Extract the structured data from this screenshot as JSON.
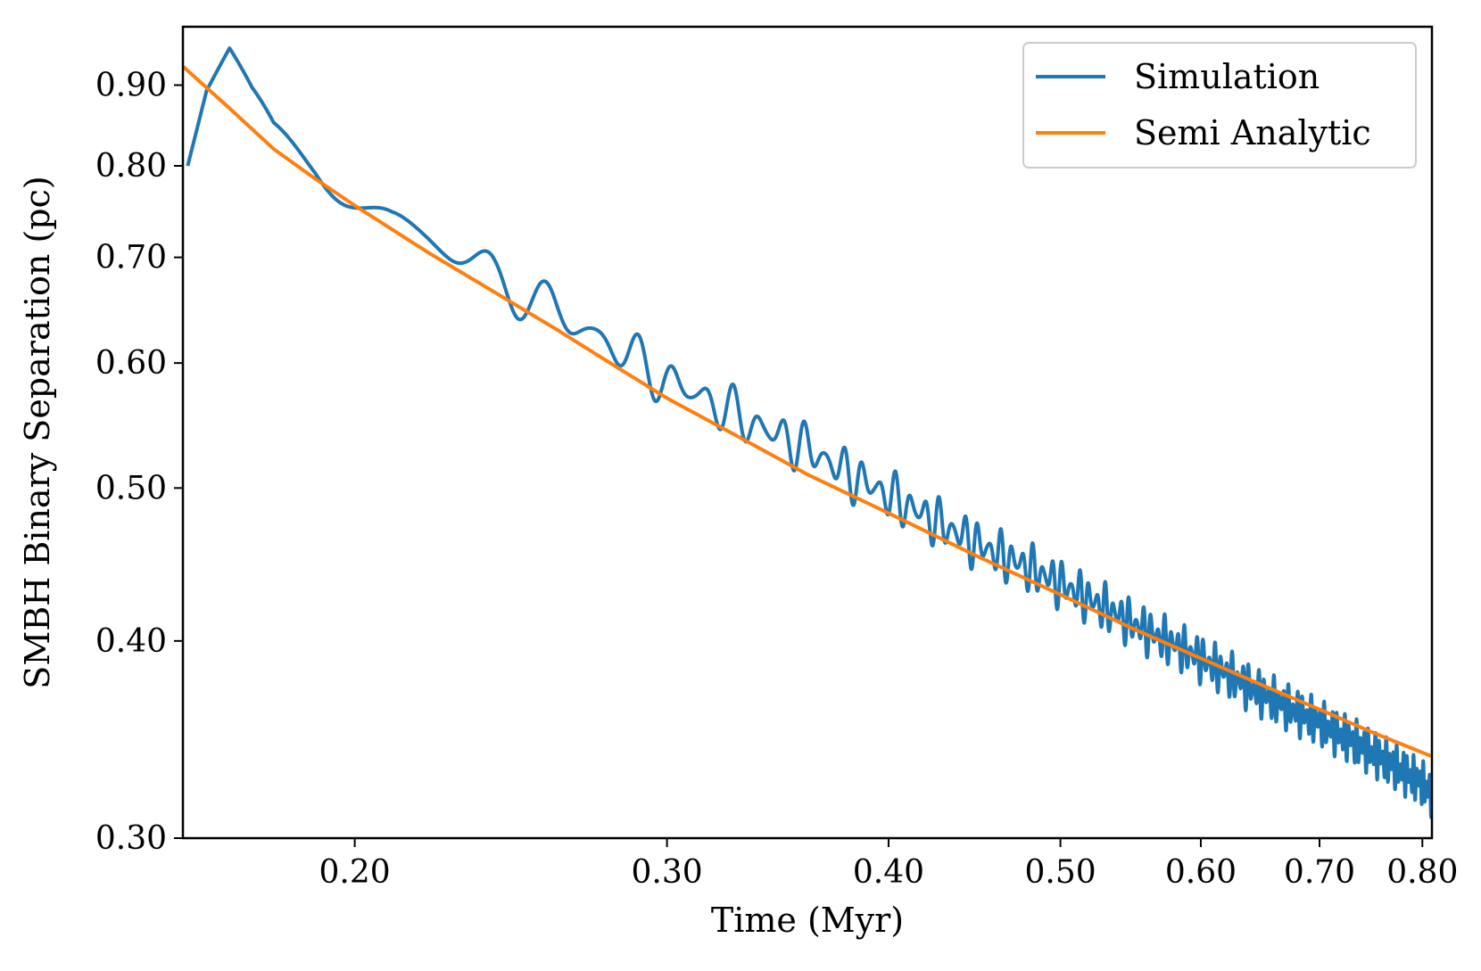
{
  "chart_data": {
    "type": "line",
    "title": "",
    "xlabel": "Time (Myr)",
    "ylabel": "SMBH Binary Separation (pc)",
    "xscale": "log",
    "yscale": "log",
    "xlim": [
      0.16,
      0.81
    ],
    "ylim": [
      0.3,
      0.98
    ],
    "xticks": [
      0.2,
      0.3,
      0.4,
      0.5,
      0.6,
      0.7,
      0.8
    ],
    "xtick_labels": [
      "0.20",
      "0.30",
      "0.40",
      "0.50",
      "0.60",
      "0.70",
      "0.80"
    ],
    "yticks": [
      0.3,
      0.4,
      0.5,
      0.6,
      0.7,
      0.8,
      0.9
    ],
    "ytick_labels": [
      "0.30",
      "0.40",
      "0.50",
      "0.60",
      "0.70",
      "0.80",
      "0.90"
    ],
    "grid": false,
    "legend_position": "top-right",
    "series": [
      {
        "name": "Simulation",
        "color": "#1f77b4",
        "style": "oscillating",
        "x": [
          0.161,
          0.165,
          0.17,
          0.175,
          0.18,
          0.19,
          0.2,
          0.21,
          0.22,
          0.23,
          0.24,
          0.25,
          0.26,
          0.27,
          0.28,
          0.29,
          0.3,
          0.32,
          0.34,
          0.36,
          0.38,
          0.4,
          0.42,
          0.45,
          0.48,
          0.5,
          0.55,
          0.6,
          0.65,
          0.7,
          0.75,
          0.8,
          0.81
        ],
        "y": [
          0.8,
          0.88,
          0.92,
          0.86,
          0.82,
          0.8,
          0.77,
          0.74,
          0.72,
          0.7,
          0.68,
          0.665,
          0.645,
          0.63,
          0.615,
          0.6,
          0.585,
          0.565,
          0.545,
          0.53,
          0.51,
          0.495,
          0.48,
          0.46,
          0.445,
          0.435,
          0.41,
          0.39,
          0.37,
          0.355,
          0.34,
          0.325,
          0.32
        ]
      },
      {
        "name": "Semi Analytic",
        "color": "#ff7f0e",
        "style": "smooth",
        "x": [
          0.16,
          0.17,
          0.18,
          0.19,
          0.2,
          0.22,
          0.24,
          0.26,
          0.28,
          0.3,
          0.33,
          0.36,
          0.4,
          0.45,
          0.5,
          0.55,
          0.6,
          0.65,
          0.7,
          0.75,
          0.81
        ],
        "y": [
          0.925,
          0.87,
          0.82,
          0.785,
          0.755,
          0.705,
          0.665,
          0.63,
          0.598,
          0.57,
          0.538,
          0.51,
          0.482,
          0.452,
          0.428,
          0.407,
          0.39,
          0.375,
          0.362,
          0.35,
          0.338
        ]
      }
    ]
  }
}
